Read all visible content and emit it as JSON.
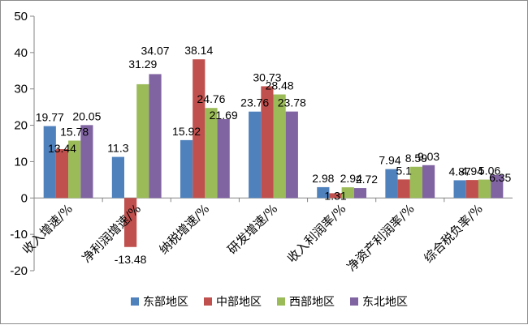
{
  "chart_data": {
    "type": "bar",
    "title": "",
    "xlabel": "",
    "ylabel": "",
    "ylim": [
      -20,
      50
    ],
    "yticks": [
      -20,
      -10,
      0,
      10,
      20,
      30,
      40,
      50
    ],
    "grid": false,
    "legend_position": "bottom",
    "categories": [
      "收入增速/%",
      "净利润增速/%",
      "纳税增速/%",
      "研发增速/%",
      "收入利润率/%",
      "净资产利润率/%",
      "综合税负率/%"
    ],
    "series": [
      {
        "name": "东部地区",
        "color": "#4f81bd",
        "values": [
          19.77,
          11.3,
          15.92,
          23.76,
          2.98,
          7.94,
          4.87
        ],
        "labels": [
          "19.77",
          "11.3",
          "15.92",
          "23.76",
          "2.98",
          "7.94",
          "4.87"
        ]
      },
      {
        "name": "中部地区",
        "color": "#c0504d",
        "values": [
          13.44,
          -13.48,
          38.14,
          30.73,
          1.31,
          5.1,
          4.94
        ],
        "labels": [
          "13.44",
          "-13.48",
          "38.14",
          "30.73",
          "1.31",
          "5.1",
          "4.94"
        ]
      },
      {
        "name": "西部地区",
        "color": "#9bbb59",
        "values": [
          15.78,
          31.29,
          24.76,
          28.48,
          2.94,
          8.59,
          5.06
        ],
        "labels": [
          "15.78",
          "31.29",
          "24.76",
          "28.48",
          "2.94",
          "8.59",
          "5.06"
        ]
      },
      {
        "name": "东北地区",
        "color": "#8064a2",
        "values": [
          20.05,
          34.07,
          21.69,
          23.78,
          2.72,
          9.03,
          6.35
        ],
        "labels": [
          "20.05",
          "34.07",
          "21.69",
          "23.78",
          "2.72",
          "9.03",
          "6.35"
        ]
      }
    ]
  }
}
